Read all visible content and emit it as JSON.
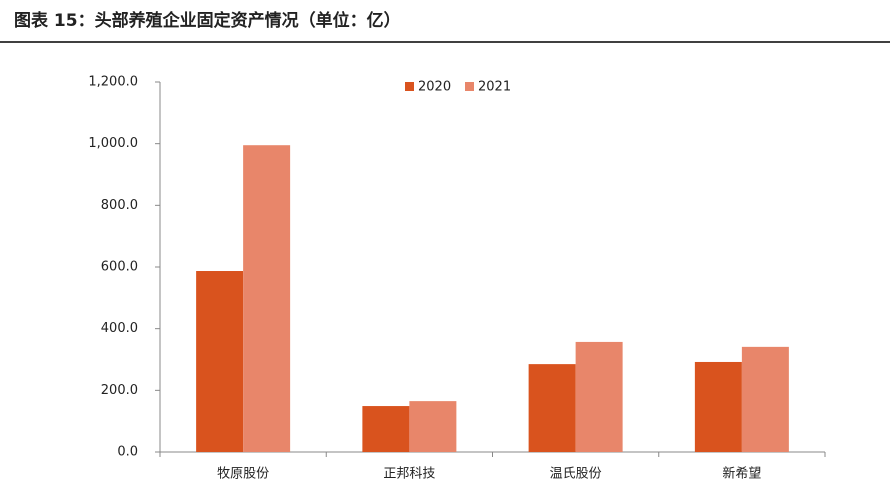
{
  "chart_data": {
    "type": "bar",
    "title": "图表 15：头部养殖企业固定资产情况（单位：亿）",
    "categories": [
      "牧原股份",
      "正邦科技",
      "温氏股份",
      "新希望"
    ],
    "series": [
      {
        "name": "2020",
        "color": "#d9531e",
        "values": [
          587,
          149,
          285,
          292
        ]
      },
      {
        "name": "2021",
        "color": "#e8866a",
        "values": [
          995,
          165,
          357,
          341
        ]
      }
    ],
    "ylim": [
      0,
      1200
    ],
    "yticks": [
      {
        "value": 0,
        "label": "0.0"
      },
      {
        "value": 200,
        "label": "200.0"
      },
      {
        "value": 400,
        "label": "400.0"
      },
      {
        "value": 600,
        "label": "600.0"
      },
      {
        "value": 800,
        "label": "800.0"
      },
      {
        "value": 1000,
        "label": "1,000.0"
      },
      {
        "value": 1200,
        "label": "1,200.0"
      }
    ],
    "grid": false,
    "legend": "top"
  }
}
